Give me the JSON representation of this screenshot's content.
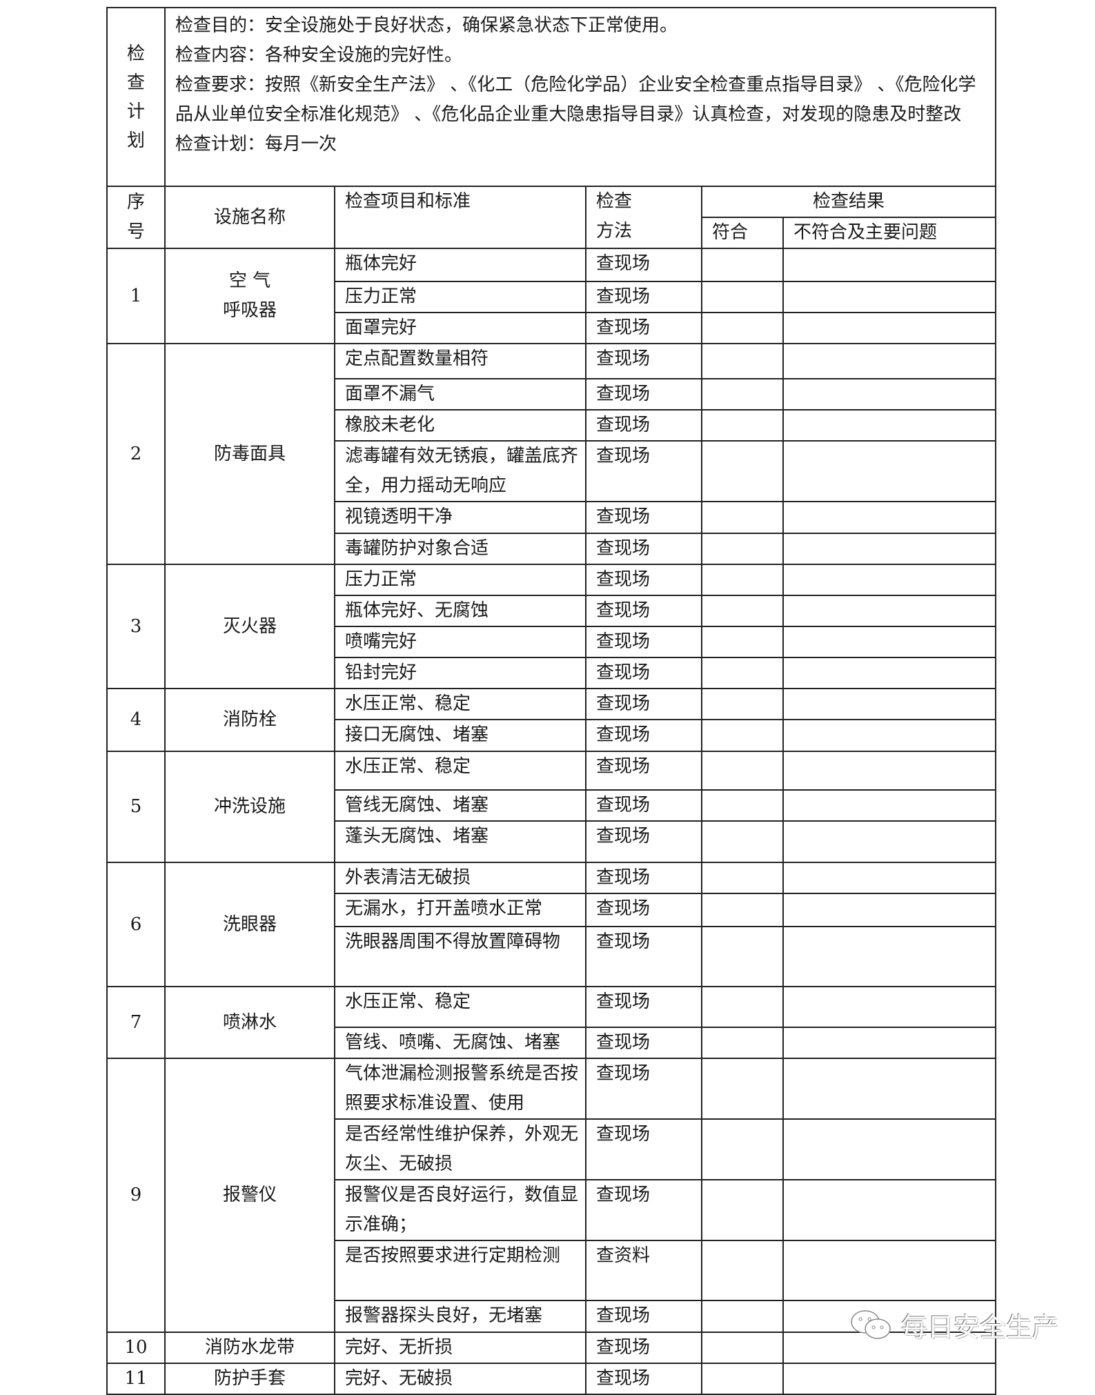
{
  "plan": {
    "label_chars": [
      "检",
      "查",
      "计",
      "划"
    ],
    "lines": [
      "检查目的：安全设施处于良好状态，确保紧急状态下正常使用。",
      "检查内容：各种安全设施的完好性。",
      "检查要求：按照《新安全生产法》 、《化工（危险化学品）企业安全检查重点指导目录》 、《危险化学品从业单位安全标准化规范》 、《危化品企业重大隐患指导目录》认真检查，对发现的隐患及时整改",
      "检查计划：每月一次"
    ]
  },
  "header": {
    "seq": [
      "序",
      "号"
    ],
    "facility": "设施名称",
    "item": "检查项目和标准",
    "method": [
      "检查",
      "方法"
    ],
    "result": "检查结果",
    "pass": "符合",
    "fail": "不符合及主要问题"
  },
  "groups": [
    {
      "id": "1",
      "name": [
        "空  气",
        "呼吸器"
      ],
      "items": [
        {
          "text": "瓶体完好",
          "method": "查现场"
        },
        {
          "text": "压力正常",
          "method": "查现场"
        },
        {
          "text": "面罩完好",
          "method": "查现场"
        }
      ]
    },
    {
      "id": "2",
      "name": [
        "防毒面具"
      ],
      "items": [
        {
          "text": "定点配置数量相符",
          "method": "查现场"
        },
        {
          "text": "面罩不漏气",
          "method": "查现场"
        },
        {
          "text": "橡胶未老化",
          "method": "查现场"
        },
        {
          "text": "滤毒罐有效无锈痕，罐盖底齐全，用力摇动无响应",
          "method": "查现场"
        },
        {
          "text": "视镜透明干净",
          "method": "查现场"
        },
        {
          "text": "毒罐防护对象合适",
          "method": "查现场"
        }
      ]
    },
    {
      "id": "3",
      "name": [
        "灭火器"
      ],
      "items": [
        {
          "text": "压力正常",
          "method": "查现场"
        },
        {
          "text": "瓶体完好、无腐蚀",
          "method": "查现场"
        },
        {
          "text": "喷嘴完好",
          "method": "查现场"
        },
        {
          "text": "铅封完好",
          "method": "查现场"
        }
      ]
    },
    {
      "id": "4",
      "name": [
        "消防栓"
      ],
      "items": [
        {
          "text": "水压正常、稳定",
          "method": "查现场"
        },
        {
          "text": "接口无腐蚀、堵塞",
          "method": "查现场"
        }
      ]
    },
    {
      "id": "5",
      "name": [
        "冲洗设施"
      ],
      "items": [
        {
          "text": "水压正常、稳定",
          "method": "查现场"
        },
        {
          "text": "管线无腐蚀、堵塞",
          "method": "查现场"
        },
        {
          "text": "蓬头无腐蚀、堵塞",
          "method": "查现场"
        }
      ]
    },
    {
      "id": "6",
      "name": [
        "洗眼器"
      ],
      "items": [
        {
          "text": "外表清洁无破损",
          "method": "查现场"
        },
        {
          "text": "无漏水，打开盖喷水正常",
          "method": "查现场"
        },
        {
          "text": "洗眼器周围不得放置障碍物",
          "method": "查现场"
        }
      ]
    },
    {
      "id": "7",
      "name": [
        "喷淋水"
      ],
      "items": [
        {
          "text": "水压正常、稳定",
          "method": "查现场"
        },
        {
          "text": "管线、喷嘴、无腐蚀、堵塞",
          "method": "查现场"
        }
      ]
    },
    {
      "id": "9",
      "name": [
        "报警仪"
      ],
      "items": [
        {
          "text": "气体泄漏检测报警系统是否按照要求标准设置、使用",
          "method": "查现场"
        },
        {
          "text": "是否经常性维护保养，外观无灰尘、无破损",
          "method": "查现场"
        },
        {
          "text": "报警仪是否良好运行，数值显示准确；",
          "method": "查现场"
        },
        {
          "text": "是否按照要求进行定期检测",
          "method": "查资料"
        },
        {
          "text": "报警器探头良好，无堵塞",
          "method": "查现场"
        }
      ]
    },
    {
      "id": "10",
      "name": [
        "消防水龙带"
      ],
      "items": [
        {
          "text": "完好、无折损",
          "method": "查现场"
        }
      ]
    },
    {
      "id": "11",
      "name": [
        "防护手套"
      ],
      "items": [
        {
          "text": "完好、无破损",
          "method": "查现场"
        }
      ]
    }
  ],
  "watermark": {
    "icon": "wechat-icon",
    "text": "每日安全生产"
  }
}
